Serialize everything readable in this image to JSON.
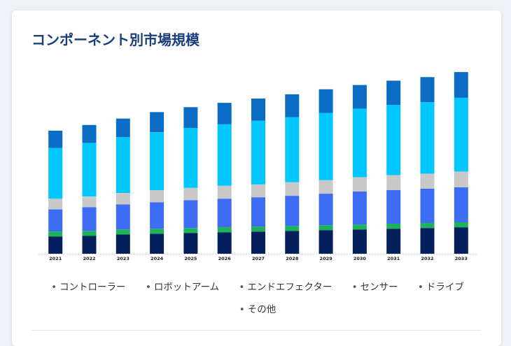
{
  "chart_data": {
    "type": "bar",
    "stacked": true,
    "title": "コンポーネント別市場規模",
    "xlabel": "",
    "ylabel": "",
    "categories": [
      "2021",
      "2022",
      "2023",
      "2024",
      "2025",
      "2026",
      "2027",
      "2028",
      "2029",
      "2030",
      "2031",
      "2032",
      "2033"
    ],
    "series": [
      {
        "name": "コントローラー",
        "color": "#041f5c",
        "values": [
          24,
          25,
          27,
          28,
          29,
          30,
          31,
          32,
          33,
          34,
          35,
          36,
          37
        ]
      },
      {
        "name": "ロボットアーム",
        "color": "#1db35a",
        "values": [
          7,
          7,
          7,
          7,
          7,
          7,
          7,
          7,
          7,
          7,
          7,
          7,
          7
        ]
      },
      {
        "name": "エンドエフェクター",
        "color": "#3d6cf5",
        "values": [
          31,
          33,
          35,
          37,
          39,
          40,
          41,
          42,
          44,
          46,
          47,
          48,
          49
        ]
      },
      {
        "name": "センサー",
        "color": "#c8c8c8",
        "values": [
          15,
          15,
          16,
          17,
          17,
          18,
          18,
          19,
          19,
          20,
          21,
          21,
          22
        ]
      },
      {
        "name": "ドライブ",
        "color": "#00c8ff",
        "values": [
          71,
          75,
          78,
          81,
          84,
          86,
          89,
          91,
          94,
          96,
          98,
          100,
          103
        ]
      },
      {
        "name": "その他",
        "color": "#0a6cc4",
        "values": [
          24,
          25,
          26,
          28,
          29,
          30,
          31,
          32,
          33,
          33,
          34,
          35,
          36
        ]
      }
    ],
    "ylim": [
      0,
      260
    ],
    "grid": false,
    "legend_position": "bottom"
  }
}
